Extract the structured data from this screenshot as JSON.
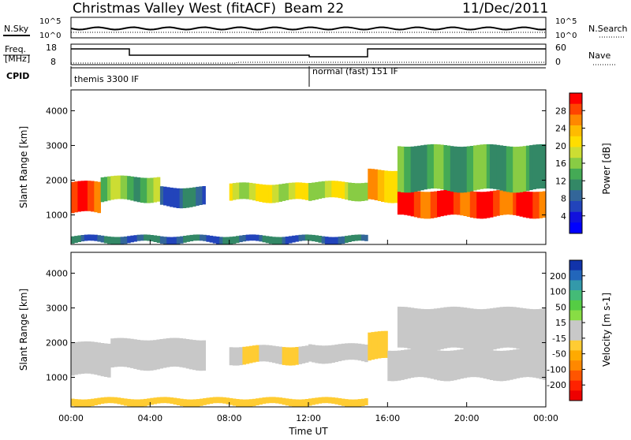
{
  "header": {
    "title": "Christmas Valley West (fitACF)",
    "beam": "Beam 22",
    "date": "11/Dec/2011"
  },
  "top_panels": {
    "nsky_label": "N.Sky",
    "nsky_ticks": [
      "10^5",
      "10^0"
    ],
    "nsearch_label": "N.Search",
    "nsearch_ticks_right": [
      "10^5",
      "10^0"
    ],
    "freq_label_line1": "Freq.",
    "freq_label_line2": "[MHz]",
    "freq_ticks": [
      "18",
      "8"
    ],
    "nave_label": "Nave",
    "nave_ticks_right": [
      "60",
      "0"
    ],
    "cpid_label": "CPID",
    "cpid_mode_1": "themis 3300 IF",
    "cpid_mode_2": "normal (fast) 151 IF"
  },
  "colorbar_power": {
    "label": "Power [dB]",
    "ticks": [
      "28",
      "24",
      "20",
      "16",
      "12",
      "8",
      "4"
    ],
    "colors": [
      "#ff0000",
      "#ff4400",
      "#ff8800",
      "#ffbb00",
      "#ffdd00",
      "#ccdd33",
      "#88cc44",
      "#44aa55",
      "#338866",
      "#336699",
      "#2244bb",
      "#1111dd",
      "#0000ff"
    ]
  },
  "colorbar_velocity": {
    "label": "Velocity [m s-1]",
    "ticks": [
      "200",
      "100",
      "50",
      "15",
      "-15",
      "-50",
      "-100",
      "-200"
    ],
    "colors": [
      "#1133aa",
      "#2266bb",
      "#3399aa",
      "#44bb77",
      "#55cc44",
      "#88dd44",
      "#c8c8c8",
      "#c8c8c8",
      "#ffcc33",
      "#ffaa00",
      "#ff8800",
      "#ff5500",
      "#ff2200",
      "#ee0000"
    ]
  },
  "chart_data": [
    {
      "type": "heatmap",
      "title": "",
      "xlabel": "",
      "ylabel": "Slant Range [km]",
      "x_ticks": [
        "00:00",
        "04:00",
        "08:00",
        "12:00",
        "16:00",
        "20:00",
        "00:00"
      ],
      "y_ticks": [
        1000,
        2000,
        3000,
        4000
      ],
      "ylim": [
        150,
        4600
      ],
      "xlim_hours": [
        0,
        24
      ],
      "colorbar": "Power [dB]",
      "clim": [
        0,
        30
      ],
      "bands": [
        {
          "t_start": 0.0,
          "t_end": 1.5,
          "range_low": 1050,
          "range_high": 1950,
          "value": 27
        },
        {
          "t_start": 1.5,
          "t_end": 4.5,
          "range_low": 1400,
          "range_high": 2100,
          "value": 14
        },
        {
          "t_start": 4.5,
          "t_end": 6.8,
          "range_low": 1250,
          "range_high": 1800,
          "value": 7
        },
        {
          "t_start": 8.0,
          "t_end": 12.0,
          "range_low": 1400,
          "range_high": 1900,
          "value": 18
        },
        {
          "t_start": 12.0,
          "t_end": 15.0,
          "range_low": 1450,
          "range_high": 1950,
          "value": 17
        },
        {
          "t_start": 15.0,
          "t_end": 16.5,
          "range_low": 1400,
          "range_high": 2300,
          "value": 22
        },
        {
          "t_start": 16.5,
          "t_end": 24.0,
          "range_low": 950,
          "range_high": 1700,
          "value": 28
        },
        {
          "t_start": 16.5,
          "t_end": 24.0,
          "range_low": 1700,
          "range_high": 3000,
          "value": 12
        },
        {
          "t_start": 0.0,
          "t_end": 15.0,
          "range_low": 200,
          "range_high": 400,
          "value": 8
        }
      ]
    },
    {
      "type": "heatmap",
      "title": "",
      "xlabel": "Time UT",
      "ylabel": "Slant Range [km]",
      "x_ticks": [
        "00:00",
        "04:00",
        "08:00",
        "12:00",
        "16:00",
        "20:00",
        "00:00"
      ],
      "y_ticks": [
        1000,
        2000,
        3000,
        4000
      ],
      "ylim": [
        150,
        4600
      ],
      "xlim_hours": [
        0,
        24
      ],
      "colorbar": "Velocity [m s-1]",
      "clim": [
        -200,
        200
      ],
      "bands": [
        {
          "t_start": 0.0,
          "t_end": 2.0,
          "range_low": 1050,
          "range_high": 2000,
          "value": 0
        },
        {
          "t_start": 2.0,
          "t_end": 6.8,
          "range_low": 1250,
          "range_high": 2100,
          "value": 25
        },
        {
          "t_start": 8.0,
          "t_end": 12.0,
          "range_low": 1400,
          "range_high": 1900,
          "value": -30
        },
        {
          "t_start": 12.0,
          "t_end": 15.0,
          "range_low": 1450,
          "range_high": 1950,
          "value": 0
        },
        {
          "t_start": 15.0,
          "t_end": 16.0,
          "range_low": 1500,
          "range_high": 2300,
          "value": -60
        },
        {
          "t_start": 16.0,
          "t_end": 24.0,
          "range_low": 950,
          "range_high": 1800,
          "value": 0
        },
        {
          "t_start": 16.5,
          "t_end": 24.0,
          "range_low": 1800,
          "range_high": 3000,
          "value": -20
        },
        {
          "t_start": 0.0,
          "t_end": 15.0,
          "range_low": 200,
          "range_high": 400,
          "value": -40
        }
      ]
    }
  ]
}
